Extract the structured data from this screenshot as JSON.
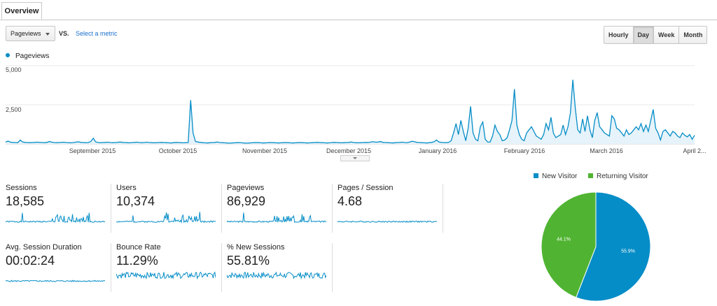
{
  "tab": {
    "label": "Overview"
  },
  "controls": {
    "metric": "Pageviews",
    "vs": "VS.",
    "select_metric": "Select a metric",
    "granularity": [
      "Hourly",
      "Day",
      "Week",
      "Month"
    ],
    "active_granularity": "Day"
  },
  "colors": {
    "line": "#058dc7",
    "fill": "#e6f3fa",
    "new": "#058dc7",
    "returning": "#50b432"
  },
  "chart_data": [
    {
      "type": "area",
      "series": [
        {
          "name": "Pageviews",
          "values": [
            120,
            180,
            110,
            100,
            90,
            80,
            250,
            120,
            100,
            90,
            80,
            90,
            100,
            110,
            100,
            90,
            80,
            100,
            150,
            110,
            90,
            80,
            90,
            100,
            110,
            90,
            80,
            70,
            90,
            120,
            130,
            100,
            90,
            80,
            90,
            150,
            360,
            130,
            90,
            80,
            90,
            100,
            110,
            90,
            80,
            90,
            100,
            120,
            100,
            90,
            80,
            70,
            90,
            100,
            110,
            90,
            80,
            90,
            110,
            90,
            80,
            70,
            80,
            90,
            100,
            90,
            80,
            70,
            60,
            80,
            100,
            90,
            80,
            70,
            80,
            90,
            2800,
            700,
            150,
            120,
            100,
            80,
            70,
            60,
            80,
            90,
            100,
            120,
            90,
            80,
            70,
            60,
            50,
            60,
            70,
            80,
            90,
            70,
            60,
            50,
            60,
            70,
            80,
            90,
            80,
            70,
            60,
            70,
            80,
            90,
            80,
            70,
            60,
            70,
            80,
            90,
            80,
            70,
            60,
            70,
            80,
            90,
            80,
            70,
            60,
            70,
            80,
            90,
            100,
            90,
            80,
            70,
            60,
            70,
            90,
            100,
            90,
            80,
            70,
            80,
            90,
            100,
            120,
            90,
            80,
            70,
            80,
            90,
            100,
            90,
            120,
            140,
            110,
            120,
            150,
            100,
            90,
            80,
            70,
            60,
            80,
            90,
            100,
            110,
            90,
            80,
            120,
            170,
            140,
            100,
            90,
            80,
            70,
            60,
            80,
            100,
            140,
            250,
            120,
            100,
            90,
            80,
            100,
            200,
            700,
            1300,
            600,
            1500,
            800,
            200,
            1000,
            2400,
            700,
            300,
            200,
            1100,
            1400,
            300,
            120,
            110,
            500,
            1200,
            800,
            600,
            200,
            250,
            400,
            900,
            1500,
            3500,
            1200,
            600,
            300,
            200,
            700,
            900,
            1100,
            800,
            500,
            400,
            300,
            600,
            1300,
            900,
            1700,
            700,
            400,
            500,
            600,
            1200,
            600,
            1100,
            2000,
            4100,
            2300,
            900,
            700,
            1600,
            800,
            1800,
            900,
            400,
            1500,
            2000,
            1100,
            900,
            700,
            600,
            500,
            1800,
            1600,
            1000,
            900,
            700,
            500,
            900,
            600,
            700,
            900,
            1100,
            900,
            1300,
            800,
            1200,
            800,
            1500,
            2200,
            1000,
            700,
            250,
            800,
            900,
            700,
            500,
            800,
            700,
            500,
            400,
            700,
            550,
            450,
            600,
            300,
            550
          ],
          "labels": {
            "sep": "September 2015",
            "oct": "October 2015",
            "nov": "November 2015",
            "dec": "December 2015",
            "jan": "January 2016",
            "feb": "February 2016",
            "mar": "March 2016",
            "apr": "April 2..."
          }
        }
      ],
      "yticks": [
        "5,000",
        "2,500"
      ],
      "ylim": [
        0,
        5000
      ]
    },
    {
      "type": "pie",
      "slices": [
        {
          "name": "New Visitor",
          "value": 55.9,
          "label": "55.9%"
        },
        {
          "name": "Returning Visitor",
          "value": 44.1,
          "label": "44.1%"
        }
      ]
    }
  ],
  "tiles": [
    {
      "label": "Sessions",
      "value": "18,585"
    },
    {
      "label": "Users",
      "value": "10,374"
    },
    {
      "label": "Pageviews",
      "value": "86,929"
    },
    {
      "label": "Pages / Session",
      "value": "4.68"
    },
    {
      "label": "Avg. Session Duration",
      "value": "00:02:24"
    },
    {
      "label": "Bounce Rate",
      "value": "11.29%"
    },
    {
      "label": "% New Sessions",
      "value": "55.81%"
    }
  ]
}
